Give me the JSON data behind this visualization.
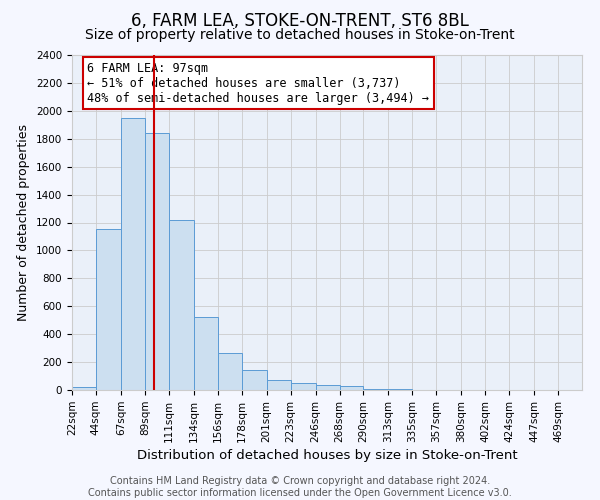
{
  "title": "6, FARM LEA, STOKE-ON-TRENT, ST6 8BL",
  "subtitle": "Size of property relative to detached houses in Stoke-on-Trent",
  "xlabel": "Distribution of detached houses by size in Stoke-on-Trent",
  "ylabel": "Number of detached properties",
  "bin_labels": [
    "22sqm",
    "44sqm",
    "67sqm",
    "89sqm",
    "111sqm",
    "134sqm",
    "156sqm",
    "178sqm",
    "201sqm",
    "223sqm",
    "246sqm",
    "268sqm",
    "290sqm",
    "313sqm",
    "335sqm",
    "357sqm",
    "380sqm",
    "402sqm",
    "424sqm",
    "447sqm",
    "469sqm"
  ],
  "bin_edges": [
    22,
    44,
    67,
    89,
    111,
    134,
    156,
    178,
    201,
    223,
    246,
    268,
    290,
    313,
    335,
    357,
    380,
    402,
    424,
    447,
    469,
    491
  ],
  "bar_heights": [
    25,
    1150,
    1950,
    1840,
    1220,
    520,
    265,
    145,
    75,
    50,
    35,
    30,
    5,
    5,
    2,
    2,
    1,
    1,
    0,
    0,
    0
  ],
  "bar_color": "#ccdff0",
  "bar_edge_color": "#5b9bd5",
  "grid_color": "#cccccc",
  "background_color": "#eaf0f9",
  "fig_background_color": "#f5f7ff",
  "vline_x": 97,
  "vline_color": "#cc0000",
  "ylim": [
    0,
    2400
  ],
  "yticks": [
    0,
    200,
    400,
    600,
    800,
    1000,
    1200,
    1400,
    1600,
    1800,
    2000,
    2200,
    2400
  ],
  "annotation_title": "6 FARM LEA: 97sqm",
  "annotation_line1": "← 51% of detached houses are smaller (3,737)",
  "annotation_line2": "48% of semi-detached houses are larger (3,494) →",
  "annotation_box_color": "#ffffff",
  "annotation_box_edge": "#cc0000",
  "footer_line1": "Contains HM Land Registry data © Crown copyright and database right 2024.",
  "footer_line2": "Contains public sector information licensed under the Open Government Licence v3.0.",
  "title_fontsize": 12,
  "subtitle_fontsize": 10,
  "xlabel_fontsize": 9.5,
  "ylabel_fontsize": 9,
  "tick_fontsize": 7.5,
  "annotation_fontsize": 8.5,
  "footer_fontsize": 7
}
